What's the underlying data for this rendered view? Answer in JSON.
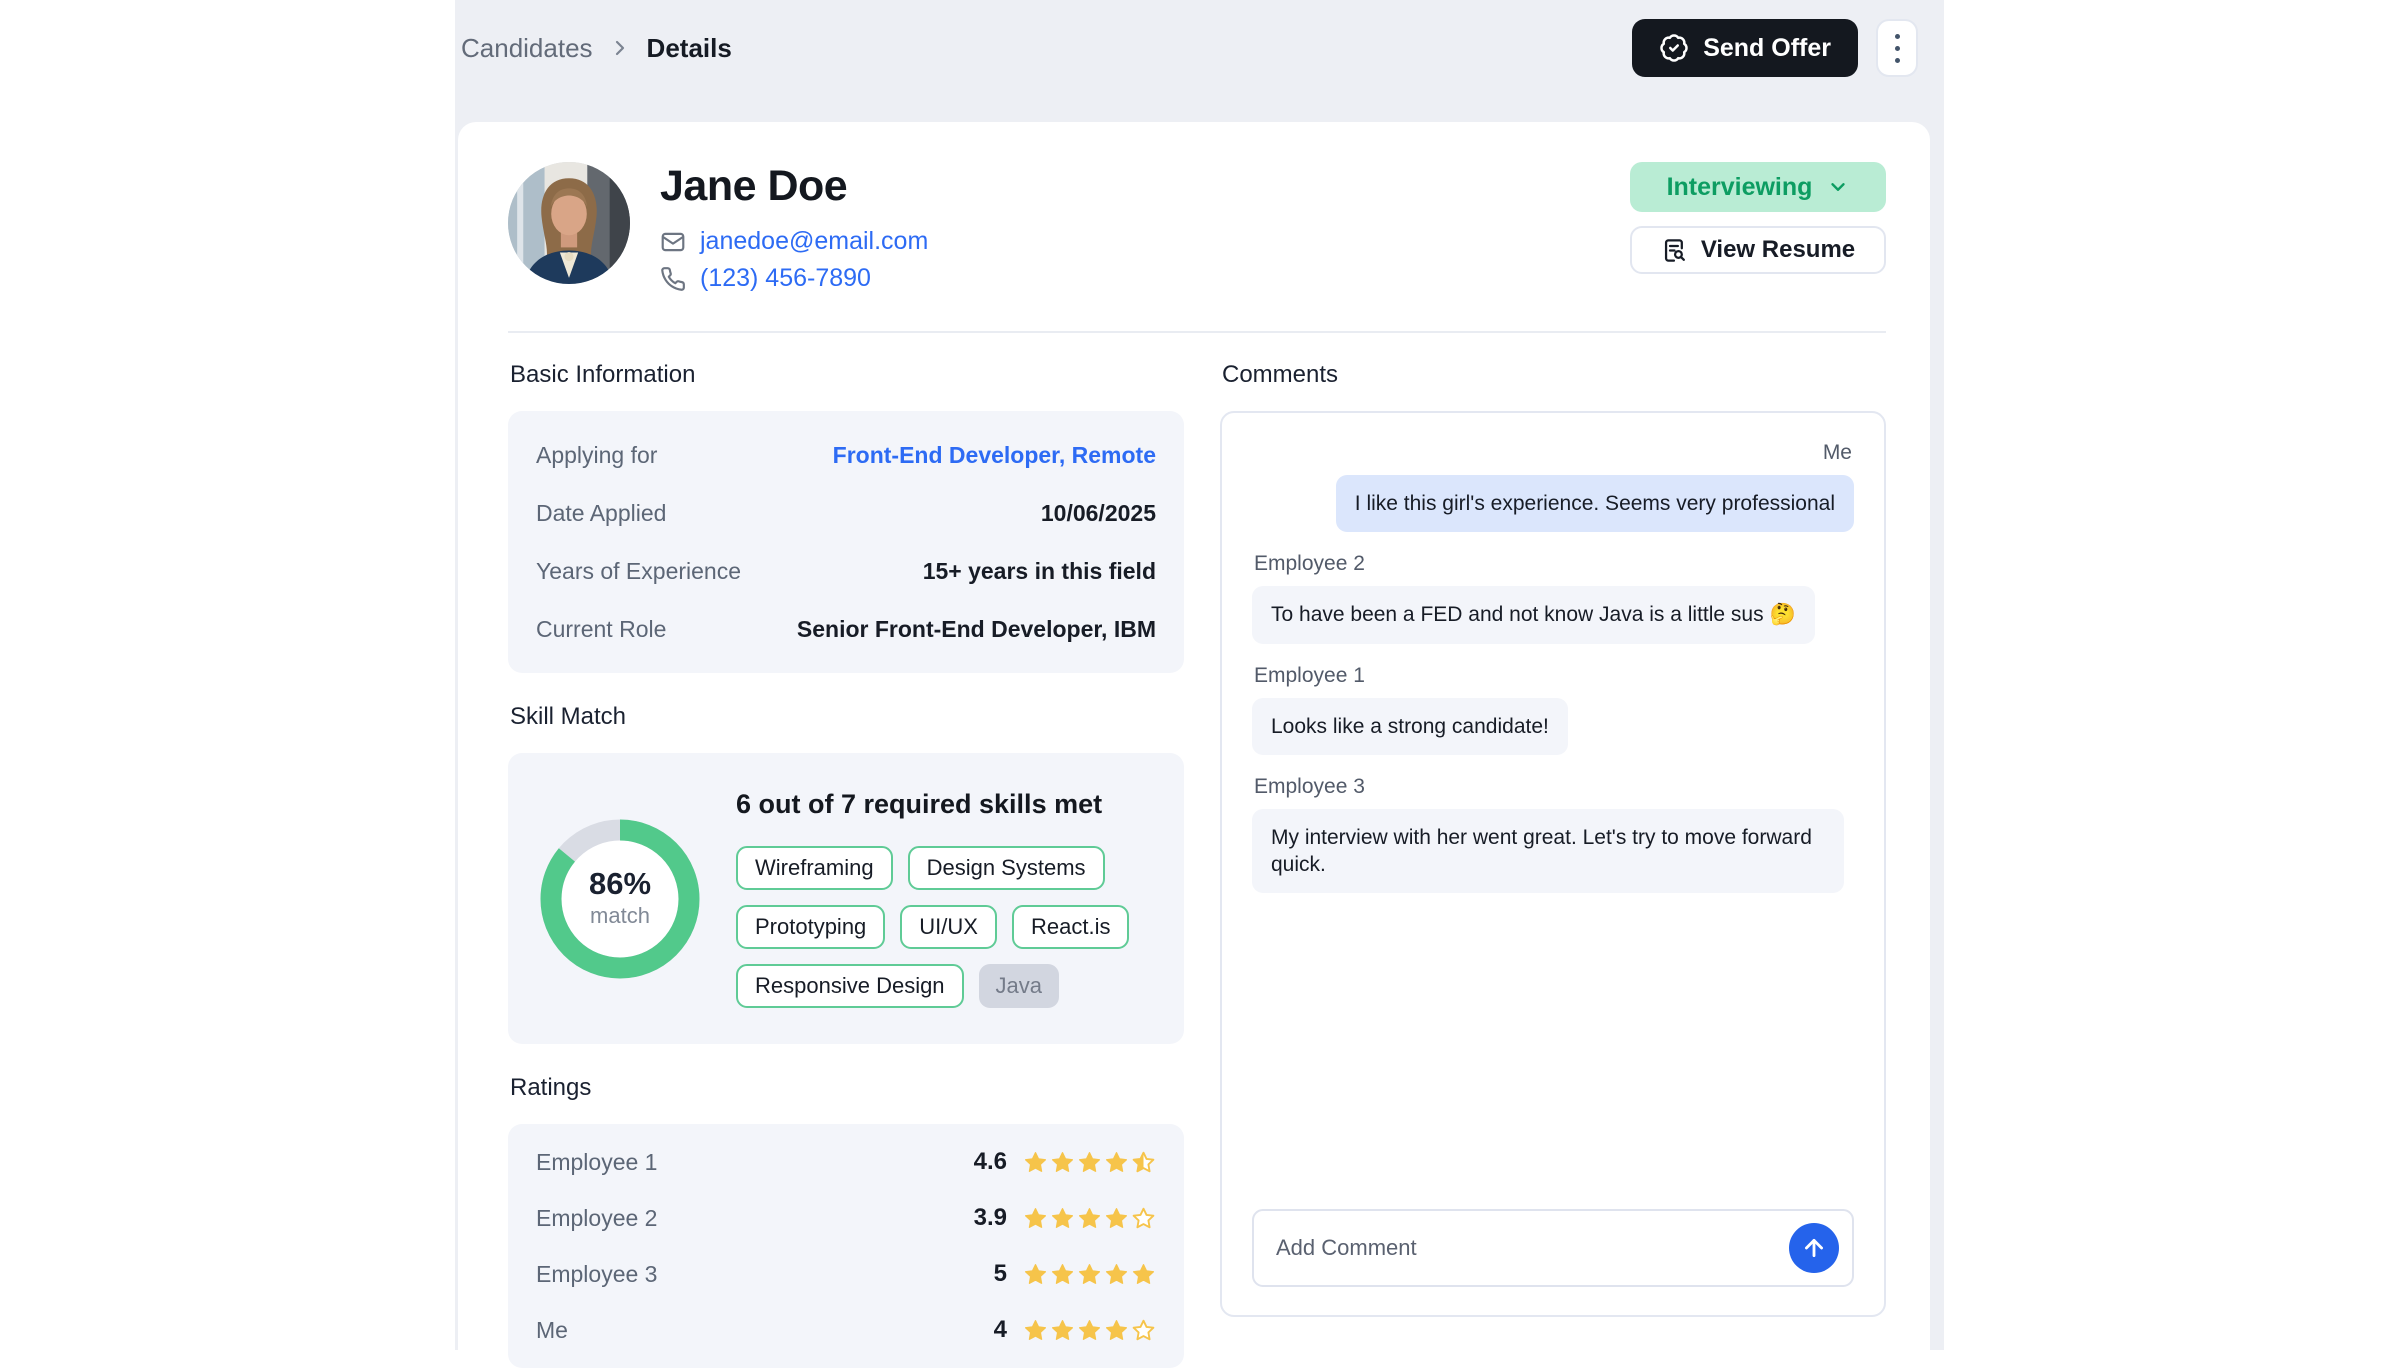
{
  "breadcrumb": {
    "parent": "Candidates",
    "current": "Details"
  },
  "topbar": {
    "send_offer_label": "Send Offer"
  },
  "icons": {
    "send_offer": "badge-check",
    "more_menu": "kebab-vertical-dots",
    "email": "mail-envelope",
    "phone": "phone-handset",
    "status_dropdown": "chevron-down",
    "view_resume": "file-search",
    "breadcrumb_separator": "chevron-right",
    "send_comment": "arrow-up-circle",
    "rating": "star"
  },
  "colors": {
    "accent_green": "#52c98b",
    "status_bg": "#b9ecd4",
    "status_text": "#0d9d62",
    "link_blue": "#2d6bf4",
    "star_yellow": "#f6c44a",
    "send_button_blue": "#2563eb",
    "dark_button": "#14181f",
    "panel_bg": "#f3f5fa",
    "own_bubble_bg": "#dbe6fc"
  },
  "profile": {
    "name": "Jane Doe",
    "email": "janedoe@email.com",
    "phone": "(123) 456-7890",
    "status": "Interviewing",
    "view_resume_label": "View Resume"
  },
  "basic_info": {
    "title": "Basic Information",
    "rows": [
      {
        "label": "Applying for",
        "value": "Front-End Developer, Remote",
        "link": true
      },
      {
        "label": "Date Applied",
        "value": "10/06/2025",
        "link": false
      },
      {
        "label": "Years of Experience",
        "value": "15+ years in this field",
        "link": false
      },
      {
        "label": "Current Role",
        "value": "Senior Front-End Developer, IBM",
        "link": false
      }
    ]
  },
  "skill_match": {
    "title": "Skill Match",
    "percent_label": "86%",
    "percent_value": 86,
    "match_label": "match",
    "headline": "6 out of 7 required skills met",
    "skills": [
      {
        "label": "Wireframing",
        "met": true
      },
      {
        "label": "Design Systems",
        "met": true
      },
      {
        "label": "Prototyping",
        "met": true
      },
      {
        "label": "UI/UX",
        "met": true
      },
      {
        "label": "React.is",
        "met": true
      },
      {
        "label": "Responsive Design",
        "met": true
      },
      {
        "label": "Java",
        "met": false
      }
    ]
  },
  "ratings": {
    "title": "Ratings",
    "rows": [
      {
        "name": "Employee 1",
        "value": "4.6",
        "stars": 4.5
      },
      {
        "name": "Employee 2",
        "value": "3.9",
        "stars": 4
      },
      {
        "name": "Employee 3",
        "value": "5",
        "stars": 5
      },
      {
        "name": "Me",
        "value": "4",
        "stars": 4
      }
    ]
  },
  "comments": {
    "title": "Comments",
    "items": [
      {
        "author": "Me",
        "own": true,
        "text": "I like this girl's experience. Seems very professional"
      },
      {
        "author": "Employee 2",
        "own": false,
        "text": "To have been a FED and not know Java is a little sus 🤔"
      },
      {
        "author": "Employee 1",
        "own": false,
        "text": "Looks like a strong candidate!"
      },
      {
        "author": "Employee 3",
        "own": false,
        "text": "My interview with her went great. Let's try to move forward quick."
      }
    ],
    "input_placeholder": "Add Comment"
  }
}
